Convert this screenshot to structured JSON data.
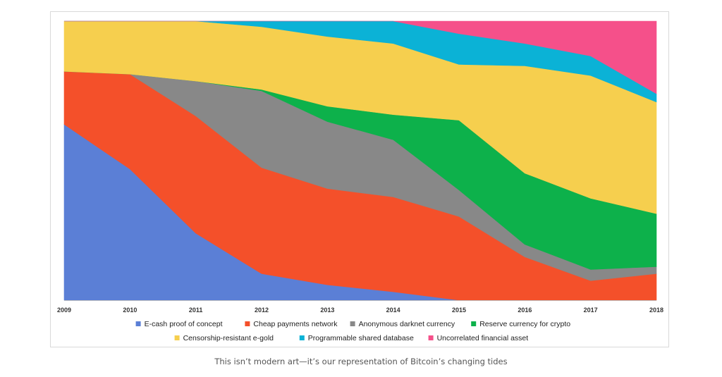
{
  "chart_data": {
    "type": "area",
    "stacked": true,
    "normalized_percent": true,
    "title": "",
    "xlabel": "",
    "ylabel": "",
    "ylim": [
      0,
      100
    ],
    "categories": [
      "2009",
      "2010",
      "2011",
      "2012",
      "2013",
      "2014",
      "2015",
      "2016",
      "2017",
      "2018"
    ],
    "series": [
      {
        "name": "E-cash proof of concept",
        "color": "#5b7fd6",
        "values": [
          63,
          47,
          24,
          9.5,
          5.5,
          3,
          0,
          0,
          0,
          0
        ]
      },
      {
        "name": "Cheap payments network",
        "color": "#f4502a",
        "values": [
          19,
          34,
          42,
          38,
          34.5,
          34,
          30,
          15.5,
          7,
          9.5
        ]
      },
      {
        "name": "Anonymous darknet currency",
        "color": "#888888",
        "values": [
          0,
          0,
          12.5,
          27.5,
          24,
          20.5,
          9.5,
          4.5,
          4,
          2.5
        ]
      },
      {
        "name": "Reserve currency for crypto",
        "color": "#0db14b",
        "values": [
          0,
          0,
          0,
          0.5,
          5.5,
          9,
          25,
          25.5,
          25.5,
          19
        ]
      },
      {
        "name": "Censorship-resistant e-gold",
        "color": "#f6cf4e",
        "values": [
          18,
          19,
          21.5,
          22.5,
          25,
          25.5,
          20,
          38.5,
          44,
          40
        ]
      },
      {
        "name": "Programmable shared database",
        "color": "#0bb2d6",
        "values": [
          0,
          0,
          0,
          2,
          5.5,
          8,
          11,
          8,
          7,
          3
        ]
      },
      {
        "name": "Uncorrelated financial asset",
        "color": "#f5508a",
        "values": [
          0,
          0,
          0,
          0,
          0,
          0,
          4.5,
          8,
          12.5,
          26
        ]
      }
    ]
  },
  "caption": "This isn’t modern art—it’s our representation of Bitcoin’s changing tides"
}
